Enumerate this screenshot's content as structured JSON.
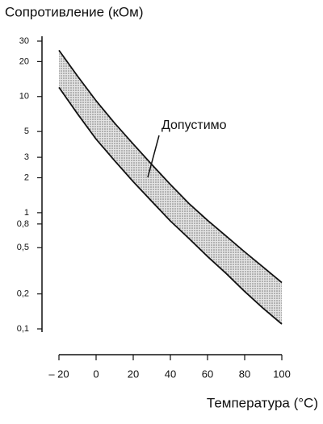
{
  "chart_data": {
    "type": "line",
    "title": "Сопротивление (кОм)",
    "x_label": "Температура (°C)",
    "annotation": "Допустимо",
    "log_scale_y": true,
    "fill_between": true,
    "x": [
      -20,
      -10,
      0,
      10,
      20,
      30,
      40,
      50,
      60,
      70,
      80,
      90,
      100
    ],
    "series": [
      {
        "color": "#111111",
        "values": [
          25,
          15,
          9.2,
          5.9,
          3.9,
          2.6,
          1.75,
          1.2,
          0.86,
          0.63,
          0.46,
          0.34,
          0.25
        ]
      },
      {
        "color": "#111111",
        "values": [
          12,
          7.1,
          4.3,
          2.8,
          1.85,
          1.25,
          0.85,
          0.6,
          0.42,
          0.3,
          0.21,
          0.15,
          0.11
        ]
      }
    ],
    "xlim": [
      -20,
      100
    ],
    "xticks": [
      {
        "value": -20,
        "label": "– 20"
      },
      0,
      20,
      40,
      60,
      80,
      100
    ],
    "ylim": [
      0.1,
      30
    ],
    "yticks": [
      30,
      20,
      10,
      5,
      3,
      2,
      1,
      {
        "value": 0.5,
        "label": "0,5"
      },
      {
        "value": 0.8,
        "label": "0,8"
      },
      {
        "value": 0.2,
        "label": "0,2"
      },
      {
        "value": 0.1,
        "label": "0,1"
      }
    ]
  }
}
